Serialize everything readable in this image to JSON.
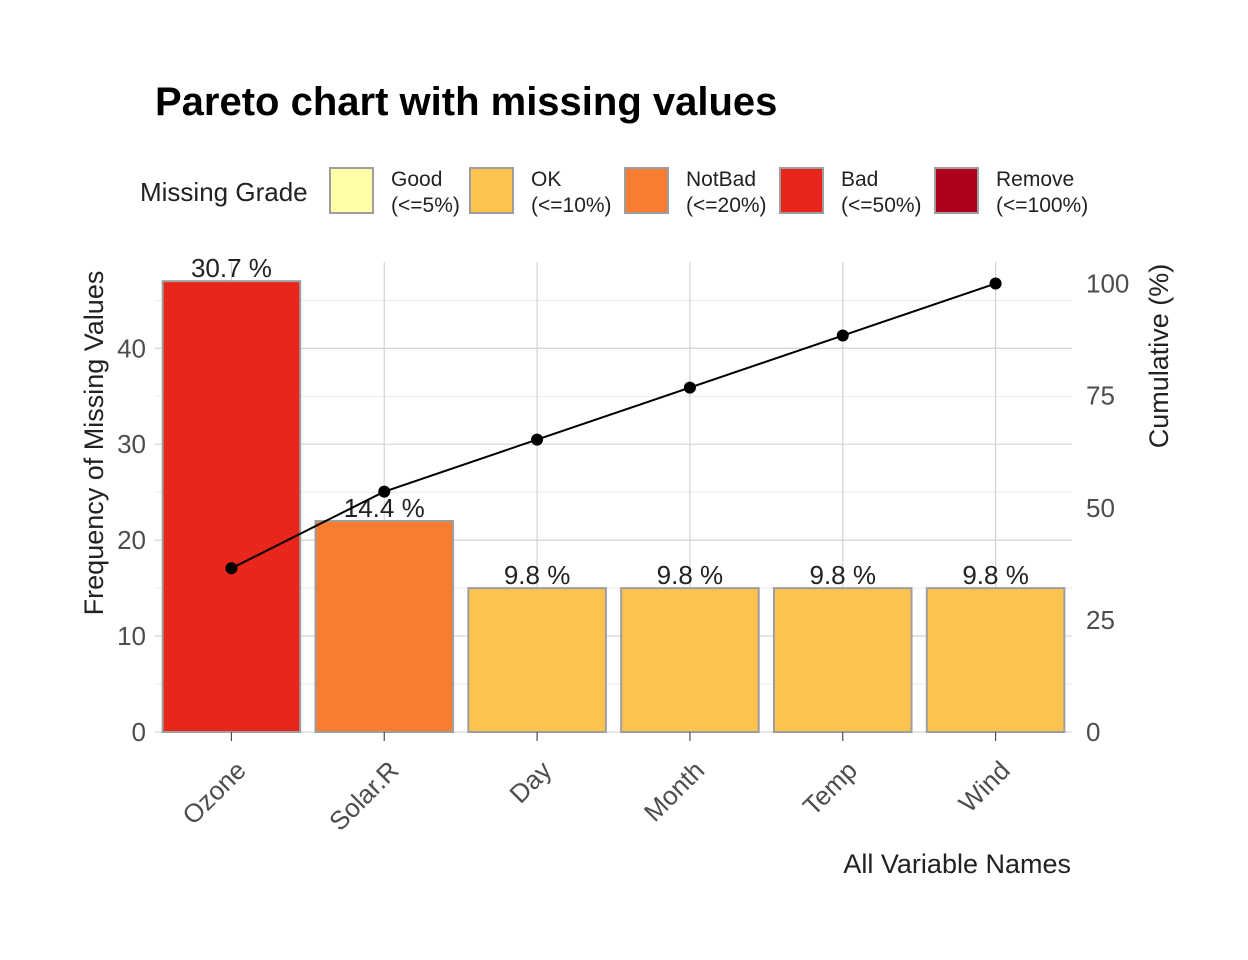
{
  "chart_data": {
    "type": "bar",
    "title": "Pareto chart with missing values",
    "xlabel": "All Variable Names",
    "ylabel": "Frequency of Missing Values",
    "y2label": "Cumulative (%)",
    "categories": [
      "Ozone",
      "Solar.R",
      "Day",
      "Month",
      "Temp",
      "Wind"
    ],
    "values": [
      47,
      22,
      15,
      15,
      15,
      15
    ],
    "bar_labels": [
      "30.7 %",
      "14.4 %",
      "9.8 %",
      "9.8 %",
      "9.8 %",
      "9.8 %"
    ],
    "bar_grades": [
      "Bad",
      "NotBad",
      "OK",
      "OK",
      "OK",
      "OK"
    ],
    "cumulative": [
      36.5,
      53.6,
      65.2,
      76.8,
      88.4,
      100
    ],
    "ylim": [
      0,
      49
    ],
    "y2lim": [
      0,
      104.8
    ],
    "yticks": [
      0,
      10,
      20,
      30,
      40
    ],
    "y2ticks": [
      0,
      25,
      50,
      75,
      100
    ],
    "grid": true,
    "legend": {
      "title": "Missing Grade",
      "placement": "top",
      "items": [
        {
          "name": "Good",
          "range": "(<=5%)",
          "color": "#ffffa8"
        },
        {
          "name": "OK",
          "range": "(<=10%)",
          "color": "#fcc34f"
        },
        {
          "name": "NotBad",
          "range": "(<=20%)",
          "color": "#fa7c30"
        },
        {
          "name": "Bad",
          "range": "(<=50%)",
          "color": "#e8261c"
        },
        {
          "name": "Remove",
          "range": "(<=100%)",
          "color": "#ad001f"
        }
      ]
    },
    "colors": {
      "bar_border": "#9e9e9e",
      "line": "#000000"
    }
  }
}
